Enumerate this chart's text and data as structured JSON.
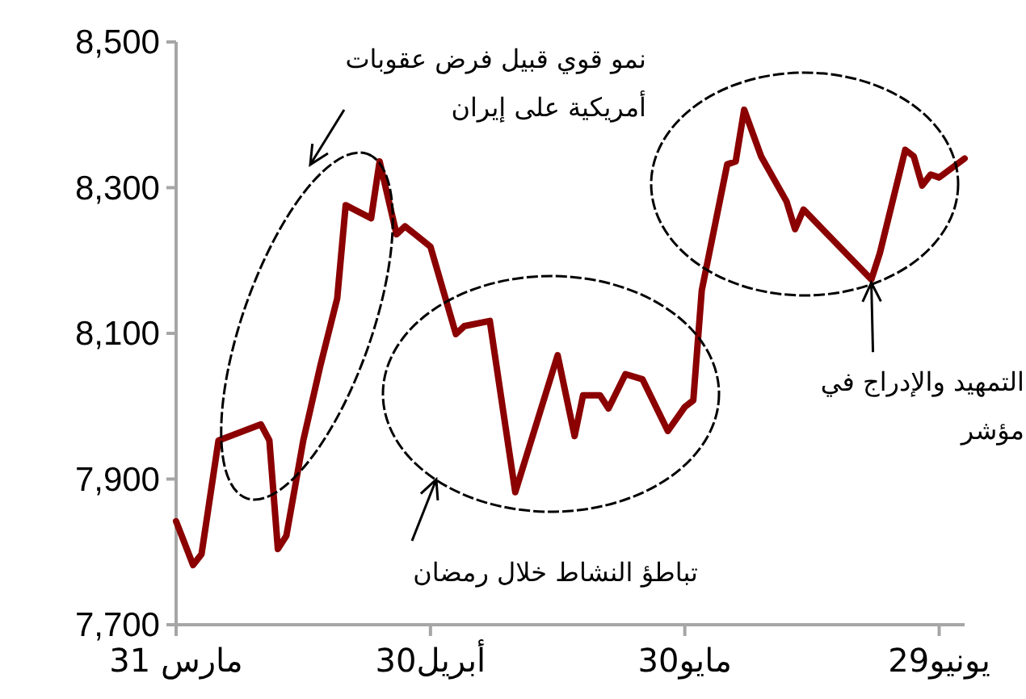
{
  "chart_data": {
    "type": "line",
    "x": [
      "--03-31",
      "--04-02",
      "--04-03",
      "--04-05",
      "--04-10",
      "--04-11",
      "--04-12",
      "--04-13",
      "--04-15",
      "--04-17",
      "--04-19",
      "--04-20",
      "--04-23",
      "--04-24",
      "--04-26",
      "--04-27",
      "--04-30",
      "--05-03",
      "--05-04",
      "--05-07",
      "--05-10",
      "--05-15",
      "--05-17",
      "--05-18",
      "--05-20",
      "--05-21",
      "--05-23",
      "--05-25",
      "--05-28",
      "--05-30",
      "--05-31",
      "--06-01",
      "--06-04",
      "--06-05",
      "--06-06",
      "--06-08",
      "--06-11",
      "--06-12",
      "--06-13",
      "--06-21",
      "--06-22",
      "--06-25",
      "--06-26",
      "--06-27",
      "--06-28",
      "--06-29",
      "--07-02"
    ],
    "series": [
      {
        "color": "#8b0000",
        "values": [
          7842,
          7782,
          7797,
          7953,
          7975,
          7953,
          7804,
          7822,
          7953,
          8055,
          8148,
          8276,
          8258,
          8336,
          8236,
          8247,
          8219,
          8099,
          8110,
          8117,
          7882,
          8070,
          7959,
          8015,
          8015,
          7997,
          8044,
          8037,
          7966,
          7999,
          8008,
          8159,
          8332,
          8336,
          8407,
          8343,
          8281,
          8243,
          8270,
          8174,
          8210,
          8352,
          8343,
          8303,
          8318,
          8314,
          8340
        ]
      }
    ],
    "xlim": [
      "--03-31",
      "--07-02"
    ],
    "xticks": [
      {
        "value": "--03-31",
        "label": "مارس 31"
      },
      {
        "value": "--04-30",
        "label": "أبريل30"
      },
      {
        "value": "--05-30",
        "label": "مايو30"
      },
      {
        "value": "--06-29",
        "label": "يونيو29"
      }
    ],
    "ylim": [
      7700,
      8500
    ],
    "yticks": [
      {
        "value": 7700,
        "label": "7,700"
      },
      {
        "value": 7900,
        "label": "7,900"
      },
      {
        "value": 8100,
        "label": "8,100"
      },
      {
        "value": 8300,
        "label": "8,300"
      },
      {
        "value": 8500,
        "label": "8,500"
      }
    ],
    "annotations": [
      "نمو قوي قبيل فرض عقوبات أمريكية على إيران",
      "تباطؤ النشاط خلال رمضان",
      {
        "text": "التمهيد والإدراج في مؤشر",
        "x": "--06-21",
        "y": 8174
      }
    ]
  }
}
